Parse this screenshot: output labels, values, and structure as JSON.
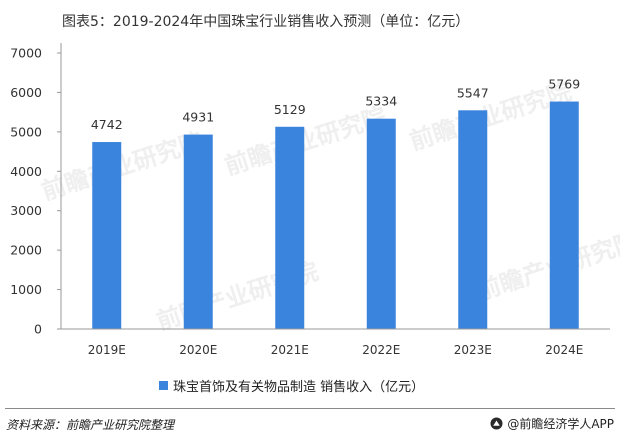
{
  "title": "图表5：2019-2024年中国珠宝行业销售收入预测（单位：亿元）",
  "watermark": "前瞻产业研究院",
  "footer": {
    "source": "资料来源：前瞻产业研究院整理",
    "brand": "@前瞻经济学人APP",
    "brand_icon": "qianzhan-logo-icon"
  },
  "colors": {
    "bar": "#3b84de",
    "axis": "#999999",
    "text": "#333333"
  },
  "chart_data": {
    "type": "bar",
    "categories": [
      "2019E",
      "2020E",
      "2021E",
      "2022E",
      "2023E",
      "2024E"
    ],
    "series": [
      {
        "name": "珠宝首饰及有关物品制造 销售收入（亿元）",
        "values": [
          4742,
          4931,
          5129,
          5334,
          5547,
          5769
        ]
      }
    ],
    "ylim": [
      0,
      7000
    ],
    "yticks": [
      0,
      1000,
      2000,
      3000,
      4000,
      5000,
      6000,
      7000
    ],
    "legend_position": "bottom",
    "grid": false
  }
}
